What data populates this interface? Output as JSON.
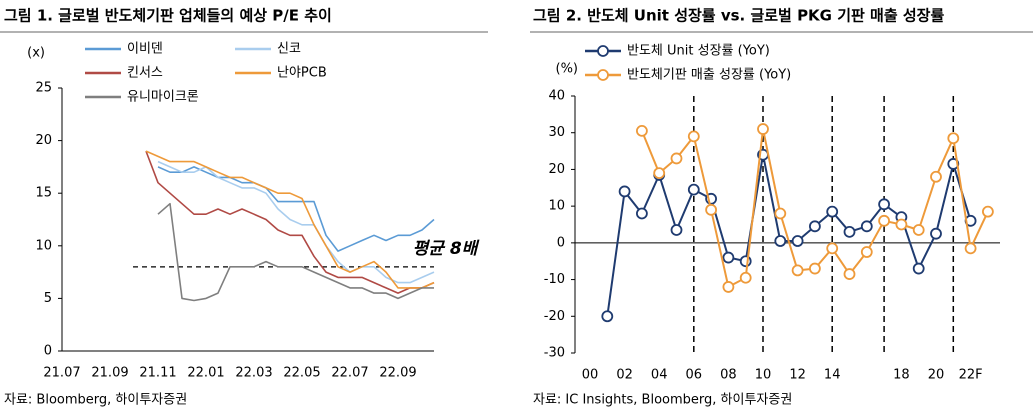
{
  "chart_data": [
    {
      "type": "line",
      "title": "그림 1. 글로벌 반도체기판 업체들의 예상 P/E 추이",
      "y_unit": "(x)",
      "source": "자료: Bloomberg, 하이투자증권",
      "categories": [
        "21.07",
        null,
        null,
        null,
        "21.09",
        null,
        null,
        null,
        "21.11",
        null,
        null,
        null,
        "22.01",
        null,
        null,
        null,
        "22.03",
        null,
        null,
        null,
        "22.05",
        null,
        null,
        null,
        "22.07",
        null,
        null,
        null,
        "22.09",
        null,
        null,
        null
      ],
      "ylim": [
        0,
        25
      ],
      "yticks": [
        0,
        5,
        10,
        15,
        20,
        25
      ],
      "hline": 8,
      "annotation": "평균 8배",
      "markers": false,
      "series": [
        {
          "name": "이비덴",
          "color": "#5b9bd5",
          "values": [
            null,
            null,
            null,
            null,
            null,
            null,
            null,
            null,
            17.5,
            17,
            17,
            17.5,
            17,
            16.5,
            16.5,
            16,
            16,
            15.5,
            14.2,
            14.2,
            14.2,
            14.2,
            11,
            9.5,
            10,
            10.5,
            11,
            10.5,
            11,
            11,
            11.5,
            12.5
          ]
        },
        {
          "name": "신코",
          "color": "#a9cdee",
          "values": [
            null,
            null,
            null,
            null,
            null,
            null,
            null,
            null,
            18,
            17.5,
            17,
            17,
            17.5,
            16.5,
            16,
            15.5,
            15.5,
            15,
            13.5,
            12.5,
            12,
            12,
            10,
            8.5,
            7.5,
            8,
            8,
            7,
            6.5,
            6.5,
            7,
            7.5
          ]
        },
        {
          "name": "킨서스",
          "color": "#b04a45",
          "values": [
            null,
            null,
            null,
            null,
            null,
            null,
            null,
            19,
            16,
            15,
            14,
            13,
            13,
            13.5,
            13,
            13.5,
            13,
            12.5,
            11.5,
            11,
            11,
            9,
            7.5,
            7,
            7,
            7,
            6.5,
            6,
            5.5,
            6,
            6,
            6.5
          ]
        },
        {
          "name": "난야PCB",
          "color": "#ee9a3a",
          "values": [
            null,
            null,
            null,
            null,
            null,
            null,
            null,
            19,
            18.5,
            18,
            18,
            18,
            17.5,
            17,
            16.5,
            16.5,
            16,
            15.5,
            15,
            15,
            14.5,
            12,
            10,
            8,
            7.5,
            8,
            8.5,
            7.5,
            6,
            6,
            6,
            6.5
          ]
        },
        {
          "name": "유니마이크론",
          "color": "#7f7f7f",
          "values": [
            null,
            null,
            null,
            null,
            null,
            null,
            null,
            null,
            13,
            14,
            5,
            4.8,
            5,
            5.5,
            8,
            8,
            8,
            8.5,
            8,
            8,
            8,
            7.5,
            7,
            6.5,
            6,
            6,
            5.5,
            5.5,
            5,
            5.5,
            6,
            6
          ]
        }
      ]
    },
    {
      "type": "line",
      "title": "그림 2. 반도체 Unit 성장률 vs. 글로벌 PKG 기판 매출 성장률",
      "y_unit": "(%)",
      "source": "자료: IC Insights, Bloomberg, 하이투자증권",
      "categories": [
        "00",
        null,
        "02",
        null,
        "04",
        null,
        "06",
        null,
        "08",
        null,
        "10",
        null,
        "12",
        null,
        "14",
        null,
        null,
        null,
        "18",
        null,
        "20",
        null,
        "22F",
        null
      ],
      "ylim": [
        -30,
        40
      ],
      "yticks": [
        -30,
        -20,
        -10,
        0,
        10,
        20,
        30,
        40
      ],
      "markers": true,
      "series": [
        {
          "name": "반도체 Unit 성장률 (YoY)",
          "color": "#1f3b70",
          "values": [
            null,
            -20,
            14,
            8,
            18.5,
            3.5,
            14.5,
            12,
            -4,
            -5,
            24,
            0.5,
            0.5,
            4.5,
            8.5,
            3,
            4.5,
            10.5,
            7,
            -7,
            2.5,
            21.5,
            6,
            null
          ]
        },
        {
          "name": "반도체기판 매출 성장률 (YoY)",
          "color": "#ee9a3a",
          "values": [
            null,
            null,
            null,
            30.5,
            19,
            23,
            29,
            9,
            -12,
            -9.5,
            31,
            8,
            -7.5,
            -7,
            -1.5,
            -8.5,
            -2.5,
            6,
            5,
            3.5,
            18,
            28.5,
            -1.5,
            8.5
          ]
        }
      ]
    }
  ]
}
